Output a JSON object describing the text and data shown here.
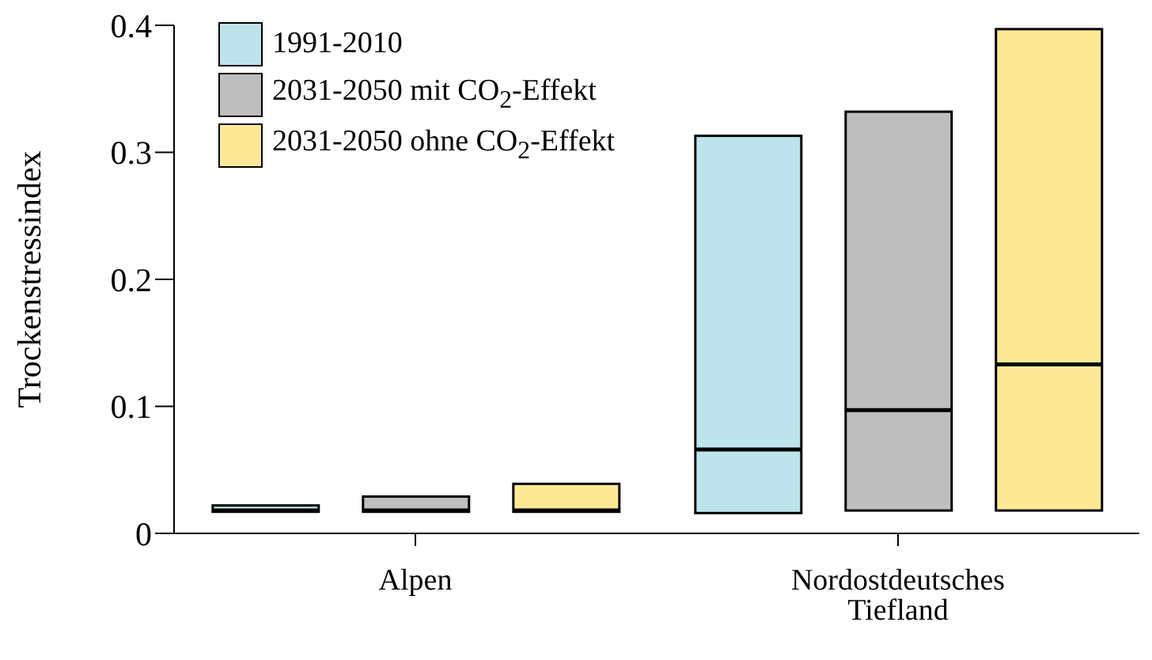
{
  "chart_data": {
    "type": "box",
    "ylabel": "Trockenstressindex",
    "categories": [
      "Alpen",
      "Nordostdeutsches Tiefland"
    ],
    "series": [
      {
        "name": "1991-2010",
        "color": "#bde3ec",
        "boxes": [
          {
            "q1": 0.017,
            "median": 0.018,
            "q3": 0.022
          },
          {
            "q1": 0.016,
            "median": 0.066,
            "q3": 0.313
          }
        ]
      },
      {
        "name": "2031-2050 mit CO$_{2}$-Effekt",
        "color": "#bebebe",
        "boxes": [
          {
            "q1": 0.017,
            "median": 0.018,
            "q3": 0.029
          },
          {
            "q1": 0.018,
            "median": 0.097,
            "q3": 0.332
          }
        ]
      },
      {
        "name": "2031-2050 ohne CO$_{2}$-Effekt",
        "color": "#fde995",
        "boxes": [
          {
            "q1": 0.017,
            "median": 0.018,
            "q3": 0.039
          },
          {
            "q1": 0.018,
            "median": 0.133,
            "q3": 0.397
          }
        ]
      }
    ],
    "ylim": [
      0,
      0.4
    ],
    "yticks": [
      0,
      0.1,
      0.2,
      0.3,
      0.4
    ],
    "legend": "top left",
    "grid": false
  }
}
